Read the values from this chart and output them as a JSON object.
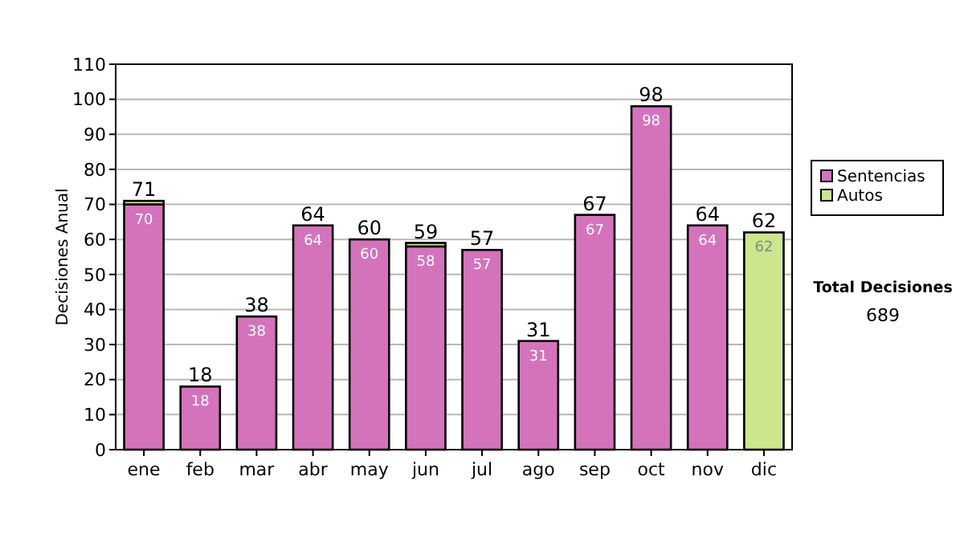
{
  "chart_data": {
    "type": "bar",
    "ylabel": "Decisiones Anual",
    "categories": [
      "ene",
      "feb",
      "mar",
      "abr",
      "may",
      "jun",
      "jul",
      "ago",
      "sep",
      "oct",
      "nov",
      "dic"
    ],
    "series": [
      {
        "name": "Sentencias",
        "color": "#d473bb",
        "values": [
          70,
          18,
          38,
          64,
          60,
          58,
          57,
          31,
          67,
          98,
          64,
          null
        ],
        "value_labels": [
          "70",
          "18",
          "38",
          "64",
          "60",
          "58",
          "57",
          "31",
          "67",
          "98",
          "64",
          null
        ]
      },
      {
        "name": "Autos",
        "color": "#cce68c",
        "values": [
          1,
          null,
          null,
          null,
          null,
          1,
          null,
          null,
          null,
          null,
          null,
          62
        ],
        "value_labels": [
          null,
          null,
          null,
          null,
          null,
          null,
          null,
          null,
          null,
          null,
          null,
          "62"
        ]
      }
    ],
    "stacked": true,
    "totals": [
      "71",
      "18",
      "38",
      "64",
      "60",
      "59",
      "57",
      "31",
      "67",
      "98",
      "64",
      "62"
    ],
    "ylim": [
      0,
      110
    ],
    "yticks": [
      0,
      10,
      20,
      30,
      40,
      50,
      60,
      70,
      80,
      90,
      100,
      110
    ],
    "grid": "y",
    "legend": "right",
    "annotations": [
      "Total Decisiones",
      "689"
    ]
  }
}
